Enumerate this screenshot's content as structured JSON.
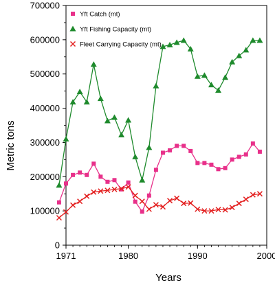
{
  "chart_data": {
    "type": "line",
    "xlabel": "Years",
    "ylabel": "Metric tons",
    "xlim": [
      1971,
      2000
    ],
    "ylim": [
      0,
      700000
    ],
    "x_ticks": [
      1971,
      1980,
      1990,
      2000
    ],
    "y_ticks": [
      0,
      100000,
      200000,
      300000,
      400000,
      500000,
      600000,
      700000
    ],
    "x_tick_labels": [
      "1971",
      "1980",
      "1990",
      "2000"
    ],
    "y_tick_labels": [
      "0",
      "100000",
      "200000",
      "300000",
      "400000",
      "500000",
      "600000",
      "700000"
    ],
    "legend_position": "top-left",
    "grid": false,
    "x": [
      1970,
      1971,
      1972,
      1973,
      1974,
      1975,
      1976,
      1977,
      1978,
      1979,
      1980,
      1981,
      1982,
      1983,
      1984,
      1985,
      1986,
      1987,
      1988,
      1989,
      1990,
      1991,
      1992,
      1993,
      1994,
      1995,
      1996,
      1997,
      1998,
      1999,
      2000
    ],
    "series": [
      {
        "name": "Yft Catch (mt)",
        "color": "#e8308a",
        "marker": "square",
        "values": [
          125000,
          180000,
          205000,
          212000,
          205000,
          238000,
          200000,
          185000,
          190000,
          163000,
          183000,
          127000,
          98000,
          145000,
          220000,
          270000,
          277000,
          290000,
          290000,
          275000,
          240000,
          240000,
          235000,
          222000,
          225000,
          250000,
          258000,
          265000,
          297000,
          273000,
          0
        ]
      },
      {
        "name": "Yft Fishing Capacity (mt)",
        "color": "#1e8a2c",
        "marker": "triangle",
        "values": [
          175000,
          310000,
          418000,
          448000,
          418000,
          528000,
          428000,
          363000,
          373000,
          322000,
          365000,
          258000,
          190000,
          285000,
          465000,
          580000,
          585000,
          592000,
          598000,
          573000,
          493000,
          496000,
          468000,
          452000,
          490000,
          535000,
          553000,
          570000,
          598000,
          598000,
          0
        ]
      },
      {
        "name": "Fleet Carrying Capacity (mt)",
        "color": "#e32020",
        "marker": "x",
        "values": [
          80000,
          97000,
          117000,
          128000,
          143000,
          155000,
          158000,
          160000,
          163000,
          165000,
          170000,
          145000,
          128000,
          105000,
          118000,
          112000,
          130000,
          137000,
          122000,
          123000,
          105000,
          100000,
          100000,
          104000,
          103000,
          110000,
          122000,
          134000,
          147000,
          150000,
          0
        ]
      }
    ]
  }
}
